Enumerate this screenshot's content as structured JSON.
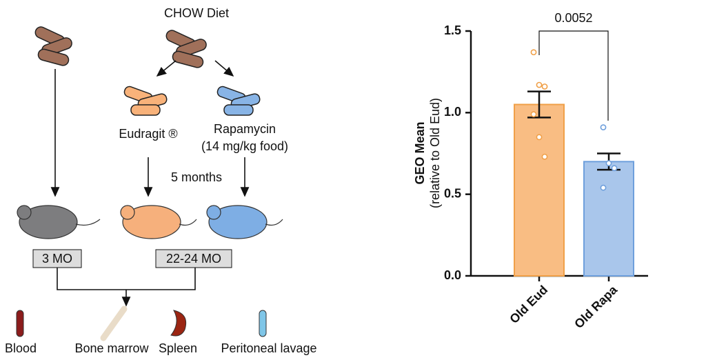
{
  "diagram": {
    "diet": "CHOW Diet",
    "eudragit": "Eudragit ®",
    "rapamycin": "Rapamycin",
    "dose": "(14 mg/kg food)",
    "duration": "5 months",
    "young_label": "3 MO",
    "old_label": "22-24 MO",
    "tissues": [
      "Blood",
      "Bone marrow",
      "Spleen",
      "Peritoneal lavage"
    ]
  },
  "chart_data": {
    "type": "bar",
    "ylabel": "GEO Mean",
    "ylabel_sub": "(relative to Old Eud)",
    "annotation": "0.0052",
    "categories": [
      "Old Eud",
      "Old Rapa"
    ],
    "values": [
      1.05,
      0.7
    ],
    "errors": [
      0.08,
      0.05
    ],
    "points": [
      [
        1.37,
        1.17,
        1.16,
        0.99,
        0.85,
        0.73
      ],
      [
        0.91,
        0.69,
        0.66,
        0.54
      ]
    ],
    "colors": [
      "#f9bd83",
      "#a9c6eb"
    ],
    "edge_colors": [
      "#f0a048",
      "#6e9fdc"
    ],
    "ylim": [
      0,
      1.5
    ],
    "yticks": [
      {
        "value": 0,
        "label": "0.0"
      },
      {
        "value": 0.5,
        "label": "0.5"
      },
      {
        "value": 1,
        "label": "1.0"
      },
      {
        "value": 1.5,
        "label": "1.5"
      }
    ]
  }
}
